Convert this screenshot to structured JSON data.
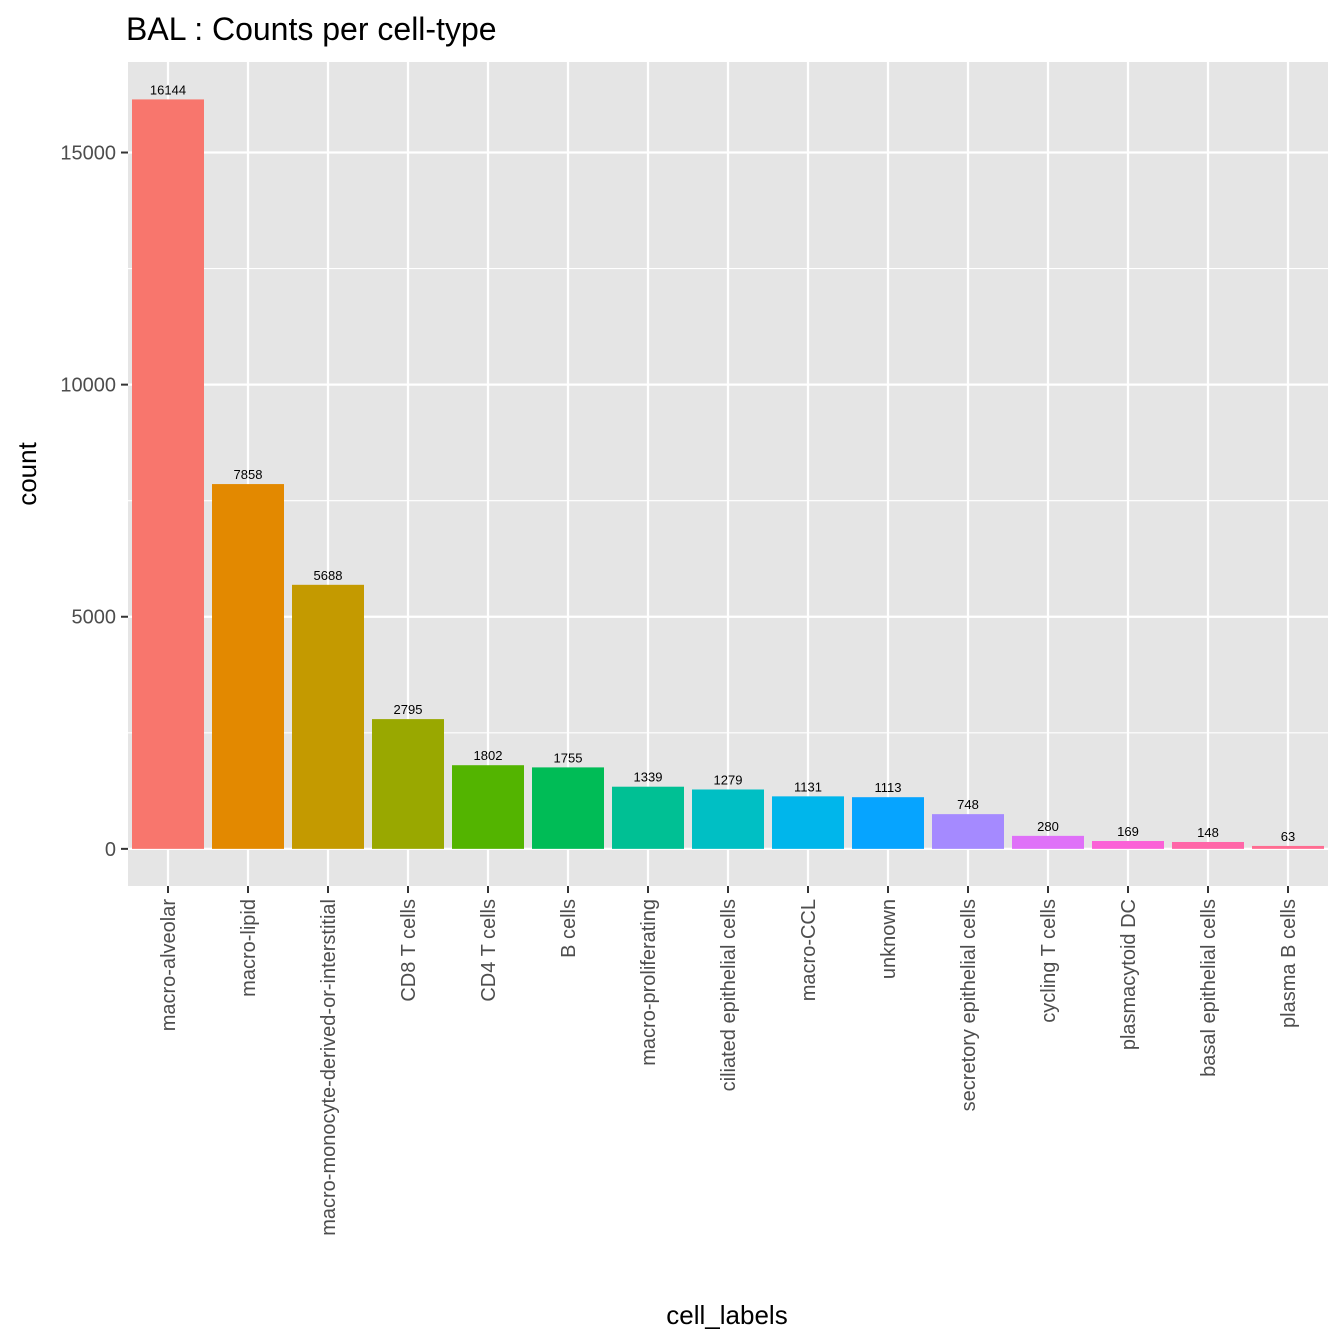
{
  "chart_data": {
    "type": "bar",
    "title": "BAL : Counts per cell-type",
    "xlabel": "cell_labels",
    "ylabel": "count",
    "ylim": [
      -800,
      16950
    ],
    "yticks": [
      0,
      5000,
      10000,
      15000
    ],
    "grid": true,
    "legend": "none",
    "categories": [
      "macro-alveolar",
      "macro-lipid",
      "macro-monocyte-derived-or-interstitial",
      "CD8 T cells",
      "CD4 T cells",
      "B cells",
      "macro-proliferating",
      "ciliated epithelial cells",
      "macro-CCL",
      "unknown",
      "secretory epithelial cells",
      "cycling T cells",
      "plasmacytoid DC",
      "basal epithelial cells",
      "plasma B cells"
    ],
    "values": [
      16144,
      7858,
      5688,
      2795,
      1802,
      1755,
      1339,
      1279,
      1131,
      1113,
      748,
      280,
      169,
      148,
      63
    ],
    "value_labels": [
      "16144",
      "7858",
      "5688",
      "2795",
      "1802",
      "1755",
      "1339",
      "1279",
      "1131",
      "1113",
      "748",
      "280",
      "169",
      "148",
      "63"
    ],
    "colors": [
      "#F8766D",
      "#E38900",
      "#C49A00",
      "#99A800",
      "#53B400",
      "#00BC56",
      "#00C094",
      "#00BFC4",
      "#00B6EB",
      "#06A4FF",
      "#A58AFF",
      "#DF70F8",
      "#FB61D7",
      "#FF66A8",
      "#FF6C91"
    ],
    "panel_background": "#E5E5E5",
    "grid_color": "#FFFFFF"
  }
}
